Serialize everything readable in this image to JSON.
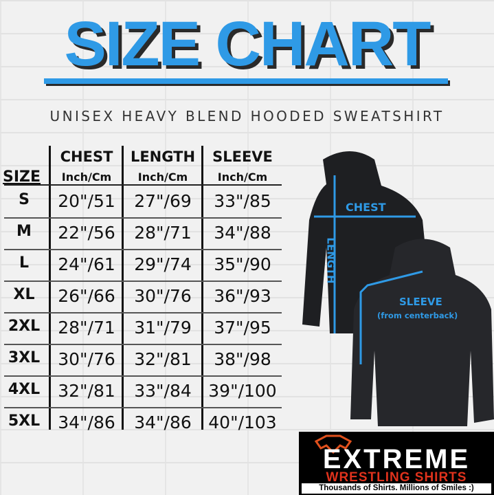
{
  "title": "SIZE CHART",
  "subtitle": "UNISEX HEAVY BLEND HOODED SWEATSHIRT",
  "colors": {
    "accent": "#2f9ae6",
    "hoodie": "#1e1f22",
    "logo_red": "#e0321c"
  },
  "table": {
    "size_header": "SIZE",
    "columns": [
      {
        "label": "CHEST",
        "unit": "Inch/Cm"
      },
      {
        "label": "LENGTH",
        "unit": "Inch/Cm"
      },
      {
        "label": "SLEEVE",
        "unit": "Inch/Cm"
      }
    ],
    "rows": [
      {
        "size": "S",
        "values": [
          "20\"/51",
          "27\"/69",
          "33\"/85"
        ]
      },
      {
        "size": "M",
        "values": [
          "22\"/56",
          "28\"/71",
          "34\"/88"
        ]
      },
      {
        "size": "L",
        "values": [
          "24\"/61",
          "29\"/74",
          "35\"/90"
        ]
      },
      {
        "size": "XL",
        "values": [
          "26\"/66",
          "30\"/76",
          "36\"/93"
        ]
      },
      {
        "size": "2XL",
        "values": [
          "28\"/71",
          "31\"/79",
          "37\"/95"
        ]
      },
      {
        "size": "3XL",
        "values": [
          "30\"/76",
          "32\"/81",
          "38\"/98"
        ]
      },
      {
        "size": "4XL",
        "values": [
          "32\"/81",
          "33\"/84",
          "39\"/100"
        ]
      },
      {
        "size": "5XL",
        "values": [
          "34\"/86",
          "34\"/86",
          "40\"/103"
        ]
      }
    ]
  },
  "diagram": {
    "chest": "CHEST",
    "length": "LENGTH",
    "sleeve": "SLEEVE",
    "sleeve_note": "(from centerback)"
  },
  "logo": {
    "main": "EXTREME",
    "sub": "WRESTLING SHIRTS",
    "tagline": "Thousands of Shirts. Millions of Smiles :)"
  }
}
